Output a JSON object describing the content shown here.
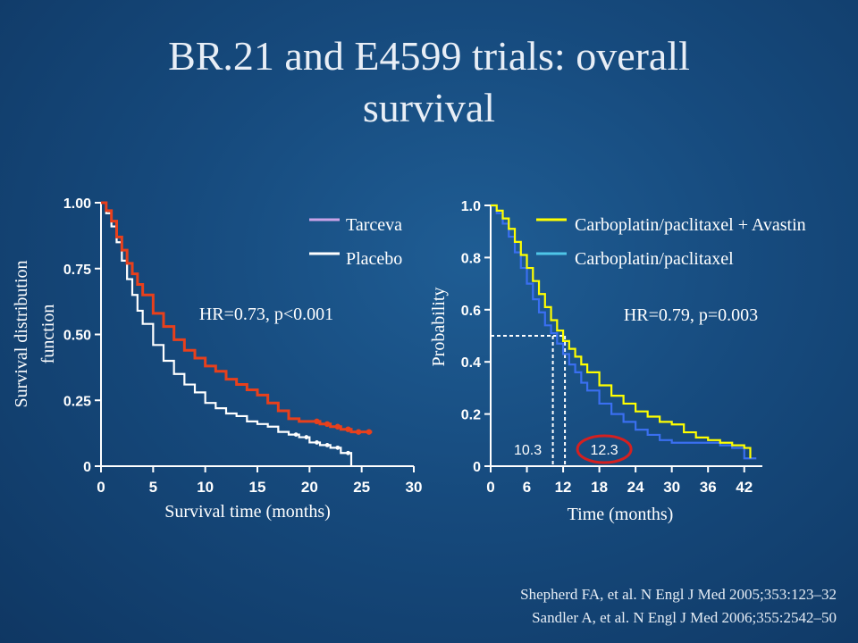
{
  "slide": {
    "title_line1": "BR.21 and E4599 trials: overall",
    "title_line2": "survival",
    "references": [
      "Shepherd FA, et al. N Engl J Med 2005;353:123–32",
      "Sandler A, et al. N Engl J Med 2006;355:2542–50"
    ]
  },
  "colors": {
    "tarceva": "#e8401c",
    "placebo": "#ffffff",
    "tarceva_legend": "#c9a3e8",
    "avastin": "#ffff00",
    "carbo": "#3a6ff0",
    "carbo_legend": "#4fc6e8",
    "median_circle": "#d42020"
  },
  "chart_data": [
    {
      "type": "line",
      "id": "br21",
      "xlabel": "Survival time (months)",
      "ylabel": "Survival distribution function",
      "xlim": [
        0,
        30
      ],
      "ylim": [
        0,
        1
      ],
      "xticks": [
        "0",
        "5",
        "10",
        "15",
        "20",
        "25",
        "30"
      ],
      "yticks": [
        "0",
        "0.25",
        "0.50",
        "0.75",
        "1.00"
      ],
      "annotation": "HR=0.73, p<0.001",
      "legend_position": "top-right",
      "series": [
        {
          "name": "Tarceva",
          "color_key": "tarceva",
          "legend_color_key": "tarceva_legend",
          "x": [
            0,
            0.5,
            1,
            1.5,
            2,
            2.5,
            3,
            3.5,
            4,
            5,
            6,
            7,
            8,
            9,
            10,
            11,
            12,
            13,
            14,
            15,
            16,
            17,
            18,
            19,
            20,
            21,
            22,
            23,
            24,
            25,
            26
          ],
          "y": [
            1.0,
            0.97,
            0.93,
            0.87,
            0.82,
            0.77,
            0.73,
            0.69,
            0.65,
            0.58,
            0.53,
            0.48,
            0.44,
            0.41,
            0.38,
            0.36,
            0.33,
            0.31,
            0.29,
            0.27,
            0.24,
            0.21,
            0.18,
            0.17,
            0.17,
            0.16,
            0.15,
            0.14,
            0.13,
            0.13,
            0.13
          ]
        },
        {
          "name": "Placebo",
          "color_key": "placebo",
          "legend_color_key": "placebo",
          "x": [
            0,
            0.5,
            1,
            1.5,
            2,
            2.5,
            3,
            3.5,
            4,
            5,
            6,
            7,
            8,
            9,
            10,
            11,
            12,
            13,
            14,
            15,
            16,
            17,
            18,
            19,
            20,
            21,
            22,
            23,
            24
          ],
          "y": [
            1.0,
            0.96,
            0.91,
            0.85,
            0.78,
            0.71,
            0.65,
            0.59,
            0.54,
            0.46,
            0.4,
            0.35,
            0.31,
            0.28,
            0.24,
            0.22,
            0.2,
            0.19,
            0.17,
            0.16,
            0.15,
            0.13,
            0.12,
            0.11,
            0.09,
            0.08,
            0.07,
            0.05,
            0.0
          ]
        }
      ]
    },
    {
      "type": "line",
      "id": "e4599",
      "xlabel": "Time (months)",
      "ylabel": "Probability",
      "xlim": [
        0,
        45
      ],
      "ylim": [
        0,
        1
      ],
      "xticks": [
        "0",
        "6",
        "12",
        "18",
        "24",
        "30",
        "36",
        "42"
      ],
      "yticks": [
        "0",
        "0.2",
        "0.4",
        "0.6",
        "0.8",
        "1.0"
      ],
      "annotation": "HR=0.79, p=0.003",
      "legend_position": "top-right",
      "median_labels": [
        "10.3",
        "12.3"
      ],
      "medians": [
        10.3,
        12.3
      ],
      "median_y": 0.5,
      "series": [
        {
          "name": "Carboplatin/paclitaxel + Avastin",
          "color_key": "avastin",
          "legend_color_key": "avastin",
          "x": [
            0,
            1,
            2,
            3,
            4,
            5,
            6,
            7,
            8,
            9,
            10,
            11,
            12,
            13,
            14,
            15,
            16,
            18,
            20,
            22,
            24,
            26,
            28,
            30,
            32,
            34,
            36,
            38,
            40,
            42,
            43
          ],
          "y": [
            1.0,
            0.98,
            0.95,
            0.91,
            0.86,
            0.81,
            0.76,
            0.71,
            0.66,
            0.61,
            0.56,
            0.52,
            0.48,
            0.45,
            0.42,
            0.39,
            0.36,
            0.31,
            0.27,
            0.24,
            0.21,
            0.19,
            0.17,
            0.16,
            0.13,
            0.11,
            0.1,
            0.09,
            0.08,
            0.07,
            0.03
          ]
        },
        {
          "name": "Carboplatin/paclitaxel",
          "color_key": "carbo",
          "legend_color_key": "carbo_legend",
          "x": [
            0,
            1,
            2,
            3,
            4,
            5,
            6,
            7,
            8,
            9,
            10,
            11,
            12,
            13,
            14,
            15,
            16,
            18,
            20,
            22,
            24,
            26,
            28,
            30,
            32,
            34,
            36,
            38,
            40,
            42,
            44
          ],
          "y": [
            1.0,
            0.97,
            0.93,
            0.88,
            0.82,
            0.76,
            0.7,
            0.64,
            0.59,
            0.54,
            0.51,
            0.47,
            0.43,
            0.39,
            0.36,
            0.32,
            0.29,
            0.24,
            0.2,
            0.17,
            0.14,
            0.12,
            0.1,
            0.09,
            0.09,
            0.09,
            0.09,
            0.08,
            0.07,
            0.03,
            0.03
          ]
        }
      ]
    }
  ]
}
